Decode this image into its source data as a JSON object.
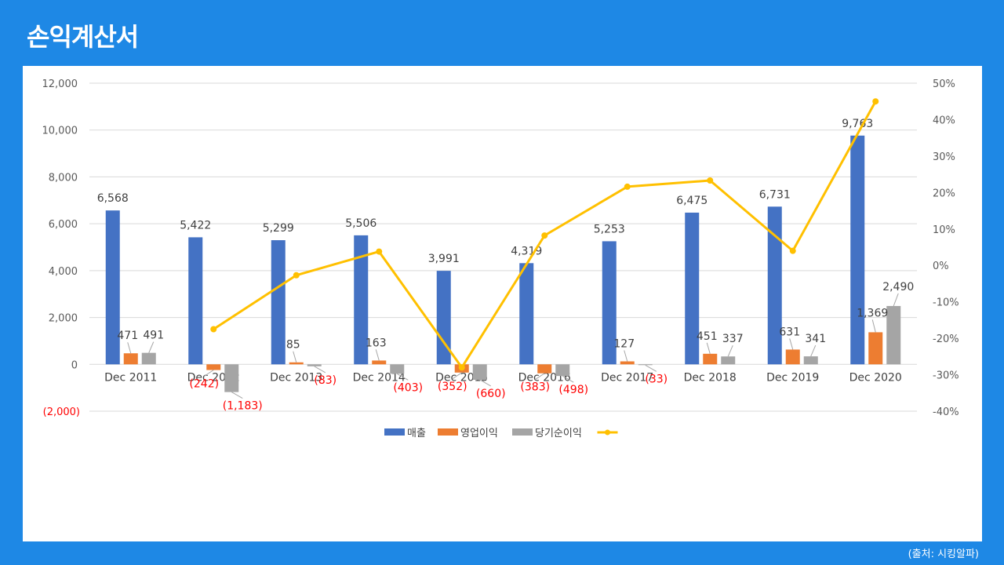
{
  "page": {
    "title": "손익계산서",
    "source": "(출처: 시킹알파)"
  },
  "colors": {
    "background": "#1e88e5",
    "revenue": "#4472c4",
    "operating_income": "#ed7d31",
    "net_income": "#a5a5a5",
    "line": "#ffc000",
    "negative_label": "#ff0000"
  },
  "chart_data": {
    "type": "bar",
    "categories": [
      "Dec 2011",
      "Dec 2012",
      "Dec 2013",
      "Dec 2014",
      "Dec 2015",
      "Dec 2016",
      "Dec 2017",
      "Dec 2018",
      "Dec 2019",
      "Dec 2020"
    ],
    "series": [
      {
        "name": "매출",
        "type": "bar",
        "axis": "left",
        "color": "#4472c4",
        "values": [
          6568,
          5422,
          5299,
          5506,
          3991,
          4319,
          5253,
          6475,
          6731,
          9763
        ],
        "labels": [
          "6,568",
          "5,422",
          "5,299",
          "5,506",
          "3,991",
          "4,319",
          "5,253",
          "6,475",
          "6,731",
          "9,763"
        ]
      },
      {
        "name": "영업이익",
        "type": "bar",
        "axis": "left",
        "color": "#ed7d31",
        "values": [
          471,
          -242,
          85,
          163,
          -352,
          -383,
          127,
          451,
          631,
          1369
        ],
        "labels": [
          "471",
          "(242)",
          "85",
          "163",
          "(352)",
          "(383)",
          "127",
          "451",
          "631",
          "1,369"
        ]
      },
      {
        "name": "당기순이익",
        "type": "bar",
        "axis": "left",
        "color": "#a5a5a5",
        "values": [
          491,
          -1183,
          -83,
          -403,
          -660,
          -498,
          -33,
          337,
          341,
          2490
        ],
        "labels": [
          "491",
          "(1,183)",
          "(83)",
          "(403)",
          "(660)",
          "(498)",
          "(33)",
          "337",
          "341",
          "2,490"
        ]
      },
      {
        "name": "",
        "type": "line",
        "axis": "right",
        "color": "#ffc000",
        "values": [
          null,
          -17.5,
          -2.7,
          3.8,
          -28.0,
          8.2,
          21.6,
          23.3,
          4.0,
          45.0
        ]
      }
    ],
    "y_left": {
      "min": -2000,
      "max": 12000,
      "ticks": [
        -2000,
        0,
        2000,
        4000,
        6000,
        8000,
        10000,
        12000
      ],
      "tick_labels": [
        "(2,000)",
        "0",
        "2,000",
        "4,000",
        "6,000",
        "8,000",
        "10,000",
        "12,000"
      ]
    },
    "y_right": {
      "min": -40,
      "max": 50,
      "ticks": [
        -40,
        -30,
        -20,
        -10,
        0,
        10,
        20,
        30,
        40,
        50
      ],
      "tick_labels": [
        "-40%",
        "-30%",
        "-20%",
        "-10%",
        "0%",
        "10%",
        "20%",
        "30%",
        "40%",
        "50%"
      ]
    },
    "grid": true,
    "legend": "bottom"
  }
}
